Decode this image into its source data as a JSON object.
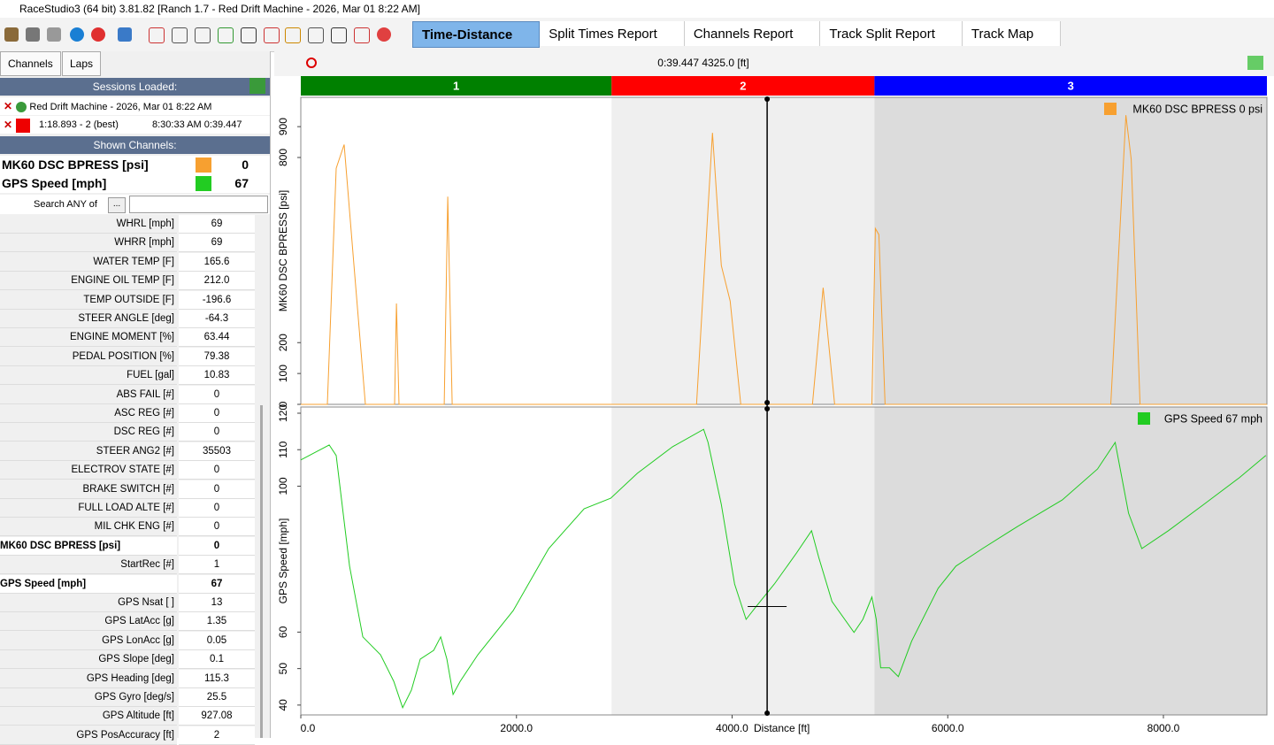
{
  "window": {
    "title": "RaceStudio3 (64 bit) 3.81.82 [Ranch 1.7 - Red Drift Machine - 2026, Mar 01 8:22 AM]"
  },
  "tabs": [
    "Time-Distance",
    "Split Times Report",
    "Channels Report",
    "Track Split Report",
    "Track Map"
  ],
  "left_panel": {
    "buttons": [
      "Channels",
      "Laps"
    ],
    "sessions_header": "Sessions Loaded:",
    "session": "Red Drift Machine - 2026, Mar 01 8:22 AM",
    "lap_name": "1:18.893 - 2 (best)",
    "lap_time": "8:30:33 AM 0:39.447",
    "shown_header": "Shown Channels:",
    "shown": [
      {
        "name": "MK60 DSC BPRESS [psi]",
        "value": 0,
        "color": "#f7a030"
      },
      {
        "name": "GPS Speed [mph]",
        "value": 67,
        "color": "#22cc22"
      }
    ],
    "search_label": "Search ANY of",
    "search_button": "...",
    "channels": [
      {
        "label": "WHRL [mph]",
        "value": "69"
      },
      {
        "label": "WHRR [mph]",
        "value": "69"
      },
      {
        "label": "WATER TEMP [F]",
        "value": "165.6"
      },
      {
        "label": "ENGINE OIL TEMP [F]",
        "value": "212.0"
      },
      {
        "label": "TEMP OUTSIDE [F]",
        "value": "-196.6"
      },
      {
        "label": "STEER ANGLE [deg]",
        "value": "-64.3"
      },
      {
        "label": "ENGINE MOMENT [%]",
        "value": "63.44"
      },
      {
        "label": "PEDAL POSITION [%]",
        "value": "79.38"
      },
      {
        "label": "FUEL [gal]",
        "value": "10.83"
      },
      {
        "label": "ABS FAIL [#]",
        "value": "0"
      },
      {
        "label": "ASC REG [#]",
        "value": "0"
      },
      {
        "label": "DSC REG [#]",
        "value": "0"
      },
      {
        "label": "STEER ANG2 [#]",
        "value": "35503"
      },
      {
        "label": "ELECTROV STATE [#]",
        "value": "0"
      },
      {
        "label": "BRAKE SWITCH [#]",
        "value": "0"
      },
      {
        "label": "FULL LOAD ALTE [#]",
        "value": "0"
      },
      {
        "label": "MIL CHK ENG [#]",
        "value": "0"
      },
      {
        "label": "MK60 DSC BPRESS [psi]",
        "value": "0",
        "bold": true
      },
      {
        "label": "StartRec [#]",
        "value": "1"
      },
      {
        "label": "GPS Speed [mph]",
        "value": "67",
        "bold": true
      },
      {
        "label": "GPS Nsat [ ]",
        "value": "13"
      },
      {
        "label": "GPS LatAcc [g]",
        "value": "1.35"
      },
      {
        "label": "GPS LonAcc [g]",
        "value": "0.05"
      },
      {
        "label": "GPS Slope [deg]",
        "value": "0.1"
      },
      {
        "label": "GPS Heading [deg]",
        "value": "115.3"
      },
      {
        "label": "GPS Gyro [deg/s]",
        "value": "25.5"
      },
      {
        "label": "GPS Altitude [ft]",
        "value": "927.08"
      },
      {
        "label": "GPS PosAccuracy [ft]",
        "value": "2"
      }
    ]
  },
  "plot": {
    "cursor_label": "0:39.447 4325.0 [ft]",
    "cursor_x": 4325,
    "x_label": "Distance [ft]",
    "xlim": [
      0,
      8960
    ],
    "xticks": [
      {
        "value": 0,
        "label": "0.0"
      },
      {
        "value": 2000,
        "label": "2000.0"
      },
      {
        "value": 4000,
        "label": "4000.0"
      },
      {
        "value": 6000,
        "label": "6000.0"
      },
      {
        "value": 8000,
        "label": "8000.0"
      }
    ],
    "sectors": [
      {
        "name": "1",
        "color": "#008000",
        "start": 0,
        "end": 2882,
        "shade": "#ffffff"
      },
      {
        "name": "2",
        "color": "#ff0000",
        "start": 2882,
        "end": 5320,
        "shade": "#efefef"
      },
      {
        "name": "3",
        "color": "#0000ff",
        "start": 5320,
        "end": 8960,
        "shade": "#dcdcdc"
      }
    ],
    "charts": [
      {
        "y_label": "MK60 DSC BPRESS [psi]",
        "legend": "MK60 DSC BPRESS  0 psi",
        "color": "#f7a030",
        "ylim": [
          0,
          995
        ],
        "yticks": [
          0,
          100,
          200,
          800,
          900
        ],
        "x": [
          0,
          246,
          328,
          402,
          493,
          599,
          870,
          887,
          911,
          1330,
          1363,
          1404,
          3670,
          3818,
          3900,
          3982,
          4080,
          4745,
          4844,
          4951,
          5296,
          5328,
          5361,
          5419,
          7512,
          7652,
          7701,
          7783,
          8960
        ],
        "y": [
          0,
          0,
          765,
          842,
          450,
          0,
          0,
          327,
          0,
          0,
          673,
          0,
          0,
          880,
          450,
          335,
          0,
          0,
          378,
          0,
          0,
          570,
          550,
          0,
          0,
          937,
          794,
          0,
          0
        ]
      },
      {
        "y_label": "GPS Speed [mph]",
        "legend": "GPS Speed  67  mph",
        "color": "#22cc22",
        "ylim": [
          37.3,
          121.7
        ],
        "yticks": [
          40,
          50,
          60,
          100,
          110,
          120
        ],
        "x": [
          0,
          263,
          328,
          452,
          575,
          739,
          862,
          944,
          1026,
          1108,
          1232,
          1297,
          1355,
          1412,
          1478,
          1642,
          1970,
          2299,
          2627,
          2874,
          3120,
          3448,
          3736,
          3777,
          3900,
          4023,
          4130,
          4228,
          4392,
          4598,
          4737,
          4803,
          4926,
          5131,
          5213,
          5296,
          5337,
          5378,
          5460,
          5542,
          5665,
          5911,
          6076,
          6322,
          6650,
          7061,
          7389,
          7553,
          7677,
          7800,
          8046,
          8374,
          8703,
          8950
        ],
        "y": [
          107.2,
          111.3,
          108.4,
          78.1,
          58.7,
          53.8,
          46.5,
          39.3,
          44.1,
          52.6,
          55.0,
          58.7,
          52.6,
          42.9,
          46.5,
          53.8,
          65.9,
          82.9,
          93.8,
          96.7,
          103.5,
          110.8,
          115.6,
          112.0,
          95.0,
          73.2,
          63.5,
          67.2,
          73.2,
          81.7,
          87.8,
          80.5,
          68.4,
          59.9,
          63.5,
          69.6,
          63.5,
          50.2,
          50.2,
          47.8,
          57.5,
          72.0,
          78.1,
          82.9,
          89.0,
          96.2,
          104.7,
          112.0,
          92.6,
          82.9,
          87.8,
          95.0,
          102.3,
          108.4
        ]
      }
    ]
  }
}
